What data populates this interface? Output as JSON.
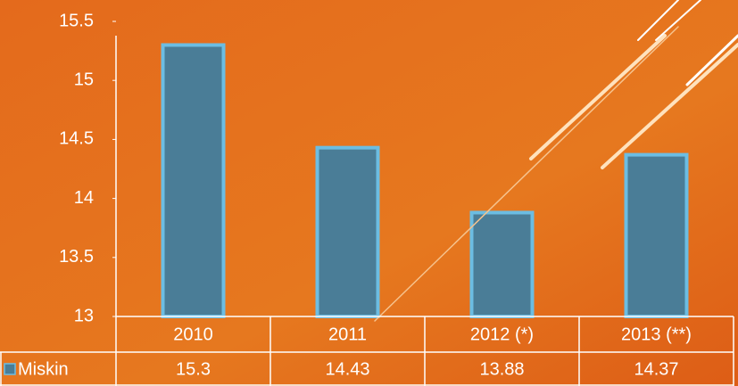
{
  "chart_data": {
    "type": "bar",
    "categories": [
      "2010",
      "2011",
      "2012 (*)",
      "2013 (**)"
    ],
    "series": [
      {
        "name": "Miskin",
        "color": "#4a7d97",
        "values": [
          15.3,
          14.43,
          13.88,
          14.37
        ]
      }
    ],
    "ylim": [
      13,
      15.5
    ],
    "yticks": [
      13,
      13.5,
      14,
      14.5,
      15,
      15.5
    ]
  }
}
